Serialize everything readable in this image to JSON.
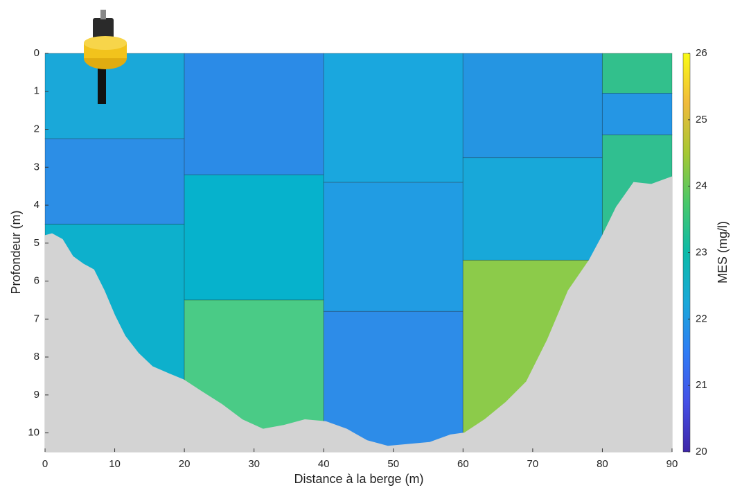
{
  "chart_data": {
    "type": "section",
    "xlabel": "Distance à la berge (m)",
    "ylabel": "Profondeur (m)",
    "xlim": [
      0,
      90
    ],
    "ylim": [
      0,
      10.5
    ],
    "y_reversed": true,
    "xticks": [
      0,
      10,
      20,
      30,
      40,
      50,
      60,
      70,
      80,
      90
    ],
    "yticks": [
      0,
      1,
      2,
      3,
      4,
      5,
      6,
      7,
      8,
      9,
      10
    ],
    "cells": [
      {
        "x": [
          0,
          20
        ],
        "y": [
          0,
          2.25
        ],
        "value": 22.5,
        "color": "#1aa8d9"
      },
      {
        "x": [
          0,
          20
        ],
        "y": [
          2.25,
          4.5
        ],
        "value": 22.0,
        "color": "#2c8ee6"
      },
      {
        "x": [
          0,
          20
        ],
        "y": [
          4.5,
          10.5
        ],
        "value": 22.8,
        "color": "#0db0cc"
      },
      {
        "x": [
          20,
          40
        ],
        "y": [
          0,
          3.2
        ],
        "value": 21.9,
        "color": "#2b8be7"
      },
      {
        "x": [
          20,
          40
        ],
        "y": [
          3.2,
          6.5
        ],
        "value": 22.8,
        "color": "#06b2cc"
      },
      {
        "x": [
          20,
          40
        ],
        "y": [
          6.5,
          10.5
        ],
        "value": 23.6,
        "color": "#4acb86"
      },
      {
        "x": [
          40,
          60
        ],
        "y": [
          0,
          3.4
        ],
        "value": 22.5,
        "color": "#1aa7de"
      },
      {
        "x": [
          40,
          60
        ],
        "y": [
          3.4,
          6.8
        ],
        "value": 22.2,
        "color": "#219ce3"
      },
      {
        "x": [
          40,
          60
        ],
        "y": [
          6.8,
          10.5
        ],
        "value": 21.9,
        "color": "#2d8ce8"
      },
      {
        "x": [
          60,
          80
        ],
        "y": [
          0,
          2.75
        ],
        "value": 22.1,
        "color": "#2595e2"
      },
      {
        "x": [
          60,
          80
        ],
        "y": [
          2.75,
          5.45
        ],
        "value": 22.5,
        "color": "#18a8d9"
      },
      {
        "x": [
          60,
          80
        ],
        "y": [
          5.45,
          10.5
        ],
        "value": 24.3,
        "color": "#8ccb4a"
      },
      {
        "x": [
          80,
          90
        ],
        "y": [
          0,
          1.05
        ],
        "value": 23.4,
        "color": "#32c08c"
      },
      {
        "x": [
          80,
          90
        ],
        "y": [
          1.05,
          2.15
        ],
        "value": 22.1,
        "color": "#2596e4"
      },
      {
        "x": [
          80,
          90
        ],
        "y": [
          2.15,
          10.5
        ],
        "value": 23.3,
        "color": "#30bf90"
      }
    ],
    "bed": {
      "color": "#d3d3d3",
      "x": [
        0,
        1,
        2.5,
        4,
        5.5,
        7,
        8.5,
        10,
        11.5,
        13.4,
        15.4,
        17.9,
        19.9,
        22.4,
        25.4,
        28.3,
        31.3,
        34.3,
        37.3,
        40.3,
        43.3,
        46.2,
        49.2,
        52.2,
        55.2,
        58.2,
        60.2,
        63.1,
        66.1,
        69.1,
        72.1,
        75.1,
        78.1,
        80,
        82,
        84.5,
        87,
        90
      ],
      "depth": [
        4.8,
        4.75,
        4.9,
        5.35,
        5.55,
        5.7,
        6.25,
        6.9,
        7.45,
        7.9,
        8.25,
        8.45,
        8.6,
        8.9,
        9.25,
        9.65,
        9.9,
        9.8,
        9.65,
        9.7,
        9.9,
        10.2,
        10.35,
        10.3,
        10.25,
        10.05,
        10.0,
        9.65,
        9.2,
        8.65,
        7.55,
        6.25,
        5.45,
        4.8,
        4.05,
        3.4,
        3.45,
        3.25
      ]
    },
    "colorbar": {
      "label": "MES (mg/l)",
      "lim": [
        20,
        26
      ],
      "ticks": [
        20,
        21,
        22,
        23,
        24,
        25,
        26
      ],
      "colors": [
        "#3e26a8",
        "#4550e6",
        "#2f7cf5",
        "#1aa8d9",
        "#0cbaa9",
        "#49c86a",
        "#a6c833",
        "#f0ba3c",
        "#f9fb15"
      ]
    }
  }
}
